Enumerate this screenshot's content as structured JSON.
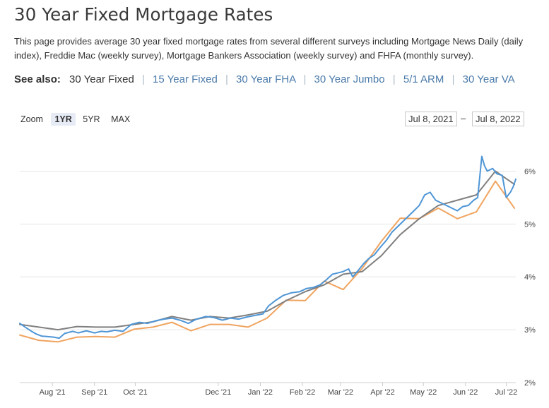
{
  "page": {
    "title": "30 Year Fixed Mortgage Rates",
    "intro": "This page provides average 30 year fixed mortgage rates from several different surveys including Mortgage News Daily (daily index), Freddie Mac (weekly survey), Mortgage Bankers Association (weekly survey) and FHFA (monthly survey)."
  },
  "see_also": {
    "label": "See also:",
    "current": "30 Year Fixed",
    "links": [
      "15 Year Fixed",
      "30 Year FHA",
      "30 Year Jumbo",
      "5/1 ARM",
      "30 Year VA"
    ]
  },
  "zoom": {
    "label": "Zoom",
    "options": [
      "1YR",
      "5YR",
      "MAX"
    ],
    "active": "1YR"
  },
  "range": {
    "from": "Jul 8, 2021",
    "separator": "–",
    "to": "Jul 8, 2022"
  },
  "colors": {
    "blue": "#4f96d6",
    "gray": "#808080",
    "orange": "#f0a460",
    "grid": "#e6e6e6"
  },
  "chart_data": {
    "type": "line",
    "x_tick_labels": [
      "Aug '21",
      "Sep '21",
      "Oct '21",
      "Dec '21",
      "Jan '22",
      "Feb '22",
      "Mar '22",
      "Apr '22",
      "May '22",
      "Jun '22",
      "Jul '22"
    ],
    "x_tick_dates": [
      "2021-08-01",
      "2021-09-01",
      "2021-10-01",
      "2021-12-01",
      "2022-01-01",
      "2022-02-01",
      "2022-03-01",
      "2022-04-01",
      "2022-05-01",
      "2022-06-01",
      "2022-07-01"
    ],
    "y_tick_labels": [
      "2%",
      "3%",
      "4%",
      "5%",
      "6%"
    ],
    "y_ticks": [
      2,
      3,
      4,
      5,
      6
    ],
    "xlim": [
      "2021-07-08",
      "2022-07-08"
    ],
    "ylim": [
      2.0,
      6.5
    ],
    "grid": "horizontal",
    "y_axis_side": "right",
    "series": [
      {
        "color": "#4f96d6",
        "points": [
          [
            "2021-07-08",
            3.12
          ],
          [
            "2021-07-12",
            3.05
          ],
          [
            "2021-07-16",
            2.98
          ],
          [
            "2021-07-20",
            2.92
          ],
          [
            "2021-07-24",
            2.88
          ],
          [
            "2021-07-28",
            2.87
          ],
          [
            "2021-08-02",
            2.86
          ],
          [
            "2021-08-06",
            2.84
          ],
          [
            "2021-08-10",
            2.93
          ],
          [
            "2021-08-16",
            2.97
          ],
          [
            "2021-08-20",
            2.94
          ],
          [
            "2021-08-26",
            2.98
          ],
          [
            "2021-09-01",
            2.94
          ],
          [
            "2021-09-06",
            2.97
          ],
          [
            "2021-09-10",
            2.96
          ],
          [
            "2021-09-16",
            2.99
          ],
          [
            "2021-09-22",
            2.97
          ],
          [
            "2021-09-28",
            3.1
          ],
          [
            "2021-10-04",
            3.14
          ],
          [
            "2021-10-10",
            3.12
          ],
          [
            "2021-10-16",
            3.17
          ],
          [
            "2021-10-22",
            3.2
          ],
          [
            "2021-10-28",
            3.22
          ],
          [
            "2021-11-03",
            3.18
          ],
          [
            "2021-11-09",
            3.12
          ],
          [
            "2021-11-15",
            3.2
          ],
          [
            "2021-11-22",
            3.25
          ],
          [
            "2021-11-28",
            3.23
          ],
          [
            "2021-12-04",
            3.18
          ],
          [
            "2021-12-10",
            3.22
          ],
          [
            "2021-12-16",
            3.2
          ],
          [
            "2021-12-22",
            3.24
          ],
          [
            "2021-12-28",
            3.27
          ],
          [
            "2022-01-03",
            3.3
          ],
          [
            "2022-01-07",
            3.45
          ],
          [
            "2022-01-12",
            3.55
          ],
          [
            "2022-01-18",
            3.65
          ],
          [
            "2022-01-24",
            3.7
          ],
          [
            "2022-01-30",
            3.72
          ],
          [
            "2022-02-04",
            3.78
          ],
          [
            "2022-02-09",
            3.8
          ],
          [
            "2022-02-14",
            3.85
          ],
          [
            "2022-02-18",
            3.93
          ],
          [
            "2022-02-23",
            4.05
          ],
          [
            "2022-02-28",
            4.08
          ],
          [
            "2022-03-03",
            4.1
          ],
          [
            "2022-03-07",
            4.15
          ],
          [
            "2022-03-10",
            4.0
          ],
          [
            "2022-03-14",
            4.12
          ],
          [
            "2022-03-18",
            4.25
          ],
          [
            "2022-03-22",
            4.35
          ],
          [
            "2022-03-26",
            4.42
          ],
          [
            "2022-03-30",
            4.55
          ],
          [
            "2022-04-04",
            4.7
          ],
          [
            "2022-04-08",
            4.85
          ],
          [
            "2022-04-12",
            4.95
          ],
          [
            "2022-04-16",
            5.05
          ],
          [
            "2022-04-20",
            5.15
          ],
          [
            "2022-04-24",
            5.25
          ],
          [
            "2022-04-28",
            5.35
          ],
          [
            "2022-05-02",
            5.55
          ],
          [
            "2022-05-06",
            5.6
          ],
          [
            "2022-05-10",
            5.45
          ],
          [
            "2022-05-14",
            5.4
          ],
          [
            "2022-05-18",
            5.35
          ],
          [
            "2022-05-22",
            5.3
          ],
          [
            "2022-05-26",
            5.25
          ],
          [
            "2022-05-30",
            5.33
          ],
          [
            "2022-06-03",
            5.35
          ],
          [
            "2022-06-07",
            5.45
          ],
          [
            "2022-06-10",
            5.5
          ],
          [
            "2022-06-13",
            6.28
          ],
          [
            "2022-06-15",
            6.1
          ],
          [
            "2022-06-17",
            6.0
          ],
          [
            "2022-06-21",
            6.05
          ],
          [
            "2022-06-24",
            5.95
          ],
          [
            "2022-06-28",
            5.92
          ],
          [
            "2022-07-01",
            5.5
          ],
          [
            "2022-07-04",
            5.6
          ],
          [
            "2022-07-06",
            5.7
          ],
          [
            "2022-07-08",
            5.85
          ]
        ]
      },
      {
        "color": "#808080",
        "points": [
          [
            "2021-07-08",
            3.1
          ],
          [
            "2021-07-22",
            3.05
          ],
          [
            "2021-08-05",
            3.0
          ],
          [
            "2021-08-19",
            3.06
          ],
          [
            "2021-09-02",
            3.05
          ],
          [
            "2021-09-16",
            3.05
          ],
          [
            "2021-09-30",
            3.1
          ],
          [
            "2021-10-14",
            3.15
          ],
          [
            "2021-10-28",
            3.25
          ],
          [
            "2021-11-11",
            3.18
          ],
          [
            "2021-11-25",
            3.25
          ],
          [
            "2021-12-09",
            3.22
          ],
          [
            "2021-12-23",
            3.28
          ],
          [
            "2022-01-06",
            3.35
          ],
          [
            "2022-01-20",
            3.55
          ],
          [
            "2022-02-03",
            3.72
          ],
          [
            "2022-02-17",
            3.85
          ],
          [
            "2022-03-03",
            4.05
          ],
          [
            "2022-03-17",
            4.1
          ],
          [
            "2022-03-31",
            4.4
          ],
          [
            "2022-04-14",
            4.8
          ],
          [
            "2022-04-28",
            5.1
          ],
          [
            "2022-05-12",
            5.35
          ],
          [
            "2022-05-26",
            5.45
          ],
          [
            "2022-06-09",
            5.55
          ],
          [
            "2022-06-23",
            6.0
          ],
          [
            "2022-07-07",
            5.75
          ]
        ]
      },
      {
        "color": "#f0a460",
        "points": [
          [
            "2021-07-08",
            2.9
          ],
          [
            "2021-07-22",
            2.8
          ],
          [
            "2021-08-05",
            2.77
          ],
          [
            "2021-08-19",
            2.86
          ],
          [
            "2021-09-02",
            2.87
          ],
          [
            "2021-09-16",
            2.86
          ],
          [
            "2021-09-30",
            3.01
          ],
          [
            "2021-10-14",
            3.05
          ],
          [
            "2021-10-28",
            3.14
          ],
          [
            "2021-11-11",
            2.98
          ],
          [
            "2021-11-25",
            3.1
          ],
          [
            "2021-12-09",
            3.1
          ],
          [
            "2021-12-23",
            3.05
          ],
          [
            "2022-01-06",
            3.22
          ],
          [
            "2022-01-20",
            3.56
          ],
          [
            "2022-02-03",
            3.55
          ],
          [
            "2022-02-17",
            3.92
          ],
          [
            "2022-03-03",
            3.76
          ],
          [
            "2022-03-17",
            4.16
          ],
          [
            "2022-03-31",
            4.67
          ],
          [
            "2022-04-14",
            5.11
          ],
          [
            "2022-04-28",
            5.1
          ],
          [
            "2022-05-12",
            5.3
          ],
          [
            "2022-05-26",
            5.1
          ],
          [
            "2022-06-09",
            5.23
          ],
          [
            "2022-06-23",
            5.81
          ],
          [
            "2022-07-07",
            5.3
          ]
        ]
      }
    ]
  }
}
